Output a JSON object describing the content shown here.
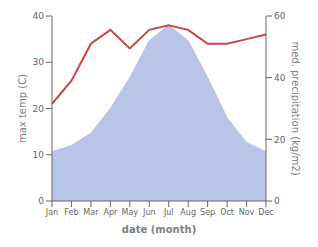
{
  "chart_data": {
    "type": "line",
    "categories": [
      "Jan",
      "Feb",
      "Mar",
      "Apr",
      "May",
      "Jun",
      "Jul",
      "Aug",
      "Sep",
      "Oct",
      "Nov",
      "Dec"
    ],
    "xlabel": "date (month)",
    "ylabel": "max temp (C)",
    "y2label": "med. precipitation (kg/m2)",
    "ylim": [
      0,
      40
    ],
    "yticks": [
      0,
      10,
      20,
      30,
      40
    ],
    "y2lim": [
      0,
      60
    ],
    "y2ticks": [
      0,
      20,
      40,
      60
    ],
    "grid": false,
    "series": [
      {
        "type": "area",
        "axis": "y2",
        "color": "#b8c4e8",
        "values": [
          16,
          18,
          22,
          30,
          40,
          52,
          57,
          52,
          40,
          27,
          19,
          16
        ]
      },
      {
        "type": "line",
        "color": "#cc4444",
        "marker": "none",
        "values": [
          21,
          26,
          34,
          37,
          33,
          37,
          38,
          37,
          34,
          34,
          35,
          36
        ]
      }
    ]
  }
}
